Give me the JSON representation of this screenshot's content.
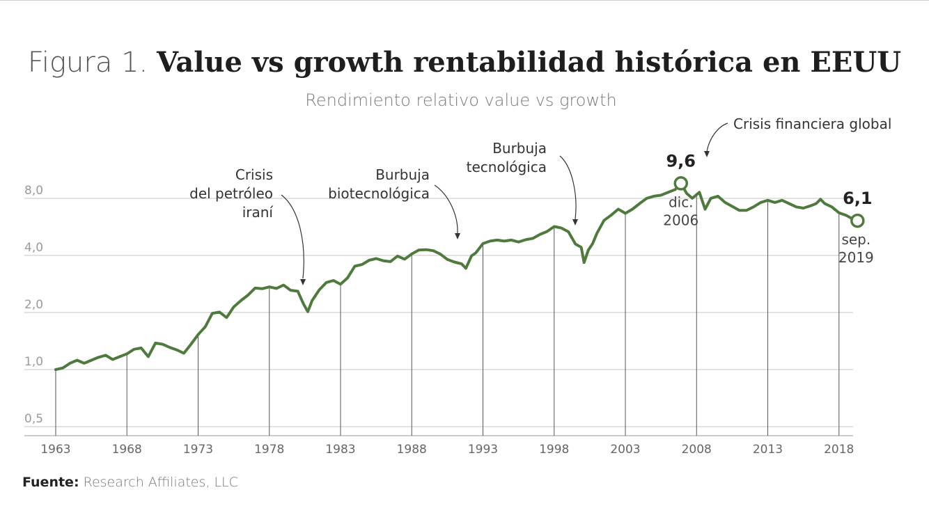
{
  "header": {
    "title_lead": "Figura 1.",
    "title_main": "Value vs growth rentabilidad histórica en EEUU",
    "subtitle": "Rendimiento relativo value vs growth"
  },
  "footer": {
    "source_label": "Fuente:",
    "source_value": "Research Affiliates, LLC"
  },
  "chart_data": {
    "type": "line",
    "title": "Value vs growth rentabilidad histórica en EEUU",
    "subtitle": "Rendimiento relativo value vs growth",
    "xlabel": "",
    "ylabel": "",
    "y_scale": "log",
    "ylim": [
      0.5,
      13
    ],
    "xlim": [
      1963,
      2019.9
    ],
    "y_ticks": [
      {
        "value": 0.5,
        "label": "0,5"
      },
      {
        "value": 1.0,
        "label": "1,0"
      },
      {
        "value": 2.0,
        "label": "2,0"
      },
      {
        "value": 4.0,
        "label": "4,0"
      },
      {
        "value": 8.0,
        "label": "8,0"
      }
    ],
    "x_ticks": [
      1963,
      1968,
      1973,
      1978,
      1983,
      1988,
      1993,
      1998,
      2003,
      2008,
      2013,
      2018
    ],
    "grid": true,
    "line_color": "#4e7a3e",
    "series": [
      {
        "name": "",
        "x": [
          1963.0,
          1963.5,
          1964.0,
          1964.5,
          1965.0,
          1965.5,
          1966.0,
          1966.5,
          1967.0,
          1967.5,
          1968.0,
          1968.5,
          1969.0,
          1969.5,
          1970.0,
          1970.5,
          1971.0,
          1971.5,
          1972.0,
          1972.5,
          1973.0,
          1973.5,
          1974.0,
          1974.5,
          1975.0,
          1975.5,
          1976.0,
          1976.5,
          1977.0,
          1977.5,
          1978.0,
          1978.5,
          1979.0,
          1979.5,
          1980.0,
          1980.4,
          1980.7,
          1981.0,
          1981.5,
          1982.0,
          1982.5,
          1983.0,
          1983.5,
          1984.0,
          1984.5,
          1985.0,
          1985.5,
          1986.0,
          1986.5,
          1987.0,
          1987.5,
          1988.0,
          1988.5,
          1989.0,
          1989.5,
          1990.0,
          1990.5,
          1991.0,
          1991.5,
          1991.8,
          1992.2,
          1992.5,
          1993.0,
          1993.5,
          1994.0,
          1994.5,
          1995.0,
          1995.5,
          1996.0,
          1996.5,
          1997.0,
          1997.5,
          1998.0,
          1998.5,
          1999.0,
          1999.5,
          1999.9,
          2000.1,
          2000.4,
          2000.7,
          2001.0,
          2001.5,
          2002.0,
          2002.5,
          2003.0,
          2003.5,
          2004.0,
          2004.5,
          2005.0,
          2005.5,
          2006.0,
          2006.5,
          2006.9,
          2007.3,
          2007.7,
          2008.2,
          2008.6,
          2009.0,
          2009.5,
          2010.0,
          2010.5,
          2011.0,
          2011.5,
          2012.0,
          2012.5,
          2013.0,
          2013.5,
          2014.0,
          2014.5,
          2015.0,
          2015.5,
          2016.0,
          2016.4,
          2016.7,
          2017.0,
          2017.5,
          2018.0,
          2018.5,
          2019.0,
          2019.3
        ],
        "y": [
          1.0,
          1.02,
          1.08,
          1.12,
          1.08,
          1.12,
          1.16,
          1.19,
          1.13,
          1.17,
          1.21,
          1.28,
          1.3,
          1.17,
          1.38,
          1.36,
          1.31,
          1.27,
          1.22,
          1.36,
          1.53,
          1.68,
          1.98,
          2.01,
          1.88,
          2.14,
          2.31,
          2.47,
          2.69,
          2.67,
          2.73,
          2.68,
          2.79,
          2.62,
          2.59,
          2.22,
          2.02,
          2.31,
          2.63,
          2.88,
          2.95,
          2.82,
          3.05,
          3.51,
          3.58,
          3.77,
          3.85,
          3.75,
          3.71,
          3.97,
          3.82,
          4.07,
          4.27,
          4.29,
          4.24,
          4.07,
          3.81,
          3.69,
          3.61,
          3.42,
          3.98,
          4.13,
          4.62,
          4.76,
          4.82,
          4.76,
          4.82,
          4.71,
          4.84,
          4.92,
          5.16,
          5.35,
          5.68,
          5.58,
          5.33,
          4.59,
          4.42,
          3.67,
          4.27,
          4.62,
          5.23,
          6.12,
          6.52,
          7.02,
          6.67,
          7.02,
          7.51,
          8.01,
          8.21,
          8.31,
          8.61,
          8.91,
          9.6,
          8.51,
          8.01,
          8.61,
          7.01,
          8.01,
          8.21,
          7.61,
          7.26,
          6.91,
          6.91,
          7.21,
          7.61,
          7.81,
          7.61,
          7.81,
          7.51,
          7.21,
          7.11,
          7.31,
          7.51,
          7.91,
          7.51,
          7.21,
          6.71,
          6.51,
          6.21,
          6.1
        ]
      }
    ],
    "highlights": [
      {
        "x": 2006.9,
        "y": 9.6,
        "value_label": "9,6",
        "date_label": [
          "dic.",
          "2006"
        ]
      },
      {
        "x": 2019.3,
        "y": 6.1,
        "value_label": "6,1",
        "date_label": [
          "sep.",
          "2019"
        ]
      }
    ],
    "annotations": [
      {
        "text": [
          "Crisis",
          "del petróleo",
          "iraní"
        ],
        "x": 1980.7,
        "y": 2.02
      },
      {
        "text": [
          "Burbuja",
          "biotecnológica"
        ],
        "x": 1991.8,
        "y": 3.42
      },
      {
        "text": [
          "Burbuja",
          "tecnológica"
        ],
        "x": 2000.1,
        "y": 3.67
      },
      {
        "text": [
          "Crisis financiera global"
        ],
        "x": 2009.0,
        "y": 8.0
      }
    ]
  }
}
